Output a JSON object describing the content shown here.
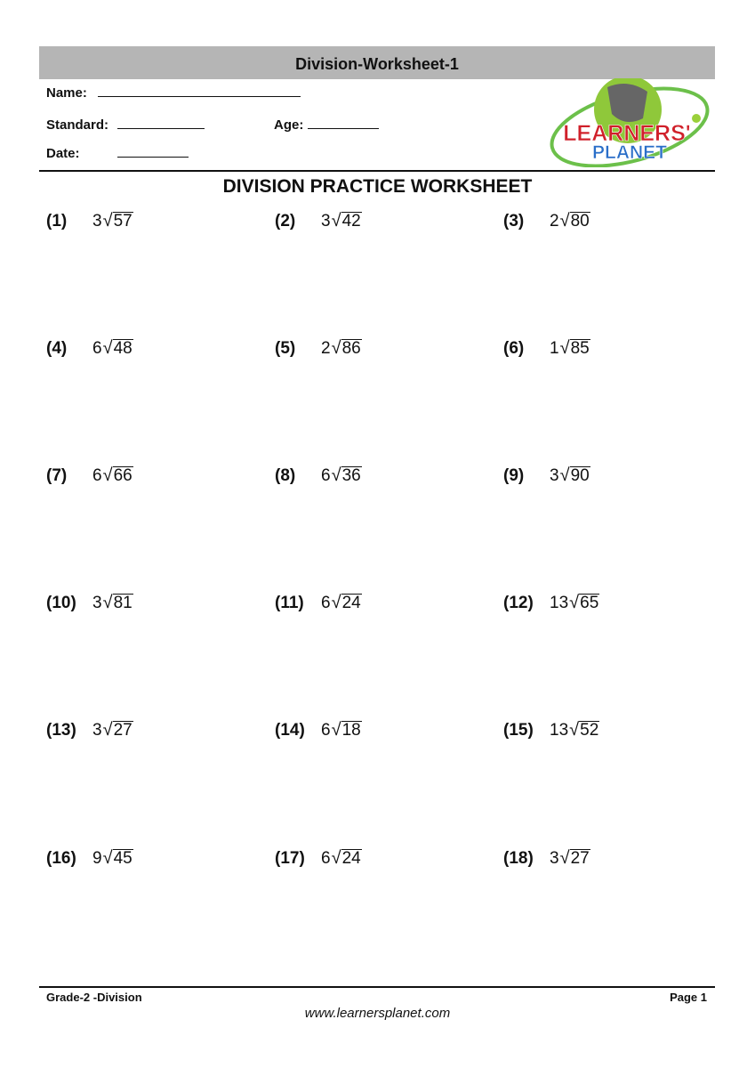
{
  "header": {
    "title": "Division-Worksheet-1",
    "name_label": "Name:",
    "standard_label": "Standard:",
    "age_label": "Age:",
    "date_label": "Date:",
    "logo_text_top": "LEARNERS'",
    "logo_text_bottom": "PLANET"
  },
  "worksheet_title": "DIVISION PRACTICE WORKSHEET",
  "problems": [
    {
      "label": "(1)",
      "divisor": "3",
      "dividend": "57"
    },
    {
      "label": "(2)",
      "divisor": "3",
      "dividend": "42"
    },
    {
      "label": "(3)",
      "divisor": "2",
      "dividend": "80"
    },
    {
      "label": "(4)",
      "divisor": "6",
      "dividend": "48"
    },
    {
      "label": "(5)",
      "divisor": "2",
      "dividend": "86"
    },
    {
      "label": "(6)",
      "divisor": "1",
      "dividend": "85"
    },
    {
      "label": "(7)",
      "divisor": "6",
      "dividend": "66"
    },
    {
      "label": "(8)",
      "divisor": "6",
      "dividend": "36"
    },
    {
      "label": "(9)",
      "divisor": "3",
      "dividend": "90"
    },
    {
      "label": "(10)",
      "divisor": "3",
      "dividend": "81"
    },
    {
      "label": "(11)",
      "divisor": "6",
      "dividend": "24"
    },
    {
      "label": "(12)",
      "divisor": "13",
      "dividend": "65"
    },
    {
      "label": "(13)",
      "divisor": "3",
      "dividend": "27"
    },
    {
      "label": "(14)",
      "divisor": "6",
      "dividend": "18"
    },
    {
      "label": "(15)",
      "divisor": "13",
      "dividend": "52"
    },
    {
      "label": "(16)",
      "divisor": "9",
      "dividend": "45"
    },
    {
      "label": "(17)",
      "divisor": "6",
      "dividend": "24"
    },
    {
      "label": "(18)",
      "divisor": "3",
      "dividend": "27"
    }
  ],
  "division_symbol": "√",
  "footer": {
    "left": "Grade-2 -Division",
    "right": "Page 1",
    "url": "www.learnersplanet.com"
  }
}
